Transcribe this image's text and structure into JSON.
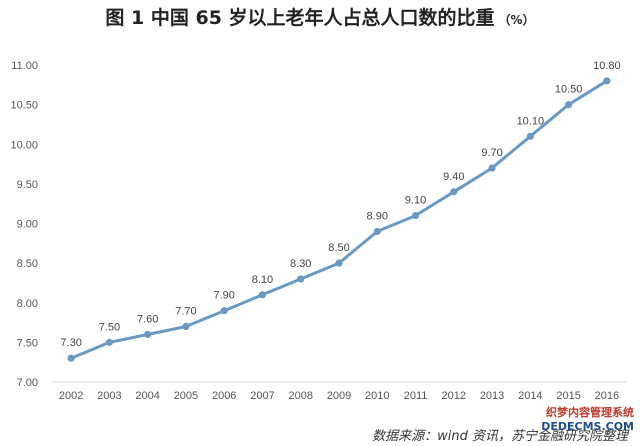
{
  "chart_data": {
    "type": "line",
    "title": "图 1  中国 65 岁以上老年人占总人口数的比重",
    "unit": "（%）",
    "categories": [
      "2002",
      "2003",
      "2004",
      "2005",
      "2006",
      "2007",
      "2008",
      "2009",
      "2010",
      "2011",
      "2012",
      "2013",
      "2014",
      "2015",
      "2016"
    ],
    "series": [
      {
        "values": [
          7.3,
          7.5,
          7.6,
          7.7,
          7.9,
          8.1,
          8.3,
          8.5,
          8.9,
          9.1,
          9.4,
          9.7,
          10.1,
          10.5,
          10.8
        ]
      }
    ],
    "data_labels": [
      "7.30",
      "7.50",
      "7.60",
      "7.70",
      "7.90",
      "8.10",
      "8.30",
      "8.50",
      "8.90",
      "9.10",
      "9.40",
      "9.70",
      "10.10",
      "10.50",
      "10.80"
    ],
    "y_ticks": [
      "7.00",
      "7.50",
      "8.00",
      "8.50",
      "9.00",
      "9.50",
      "10.00",
      "10.50",
      "11.00"
    ],
    "ylim": [
      7.0,
      11.0
    ],
    "grid": false,
    "line_color": "#6a9ac4",
    "xlabel": "",
    "ylabel": ""
  },
  "source": "数据来源：wind 资讯，苏宁金融研究院整理",
  "watermark": {
    "line1": "织梦内容管理系统",
    "line2": "DEDECMS.COM"
  }
}
